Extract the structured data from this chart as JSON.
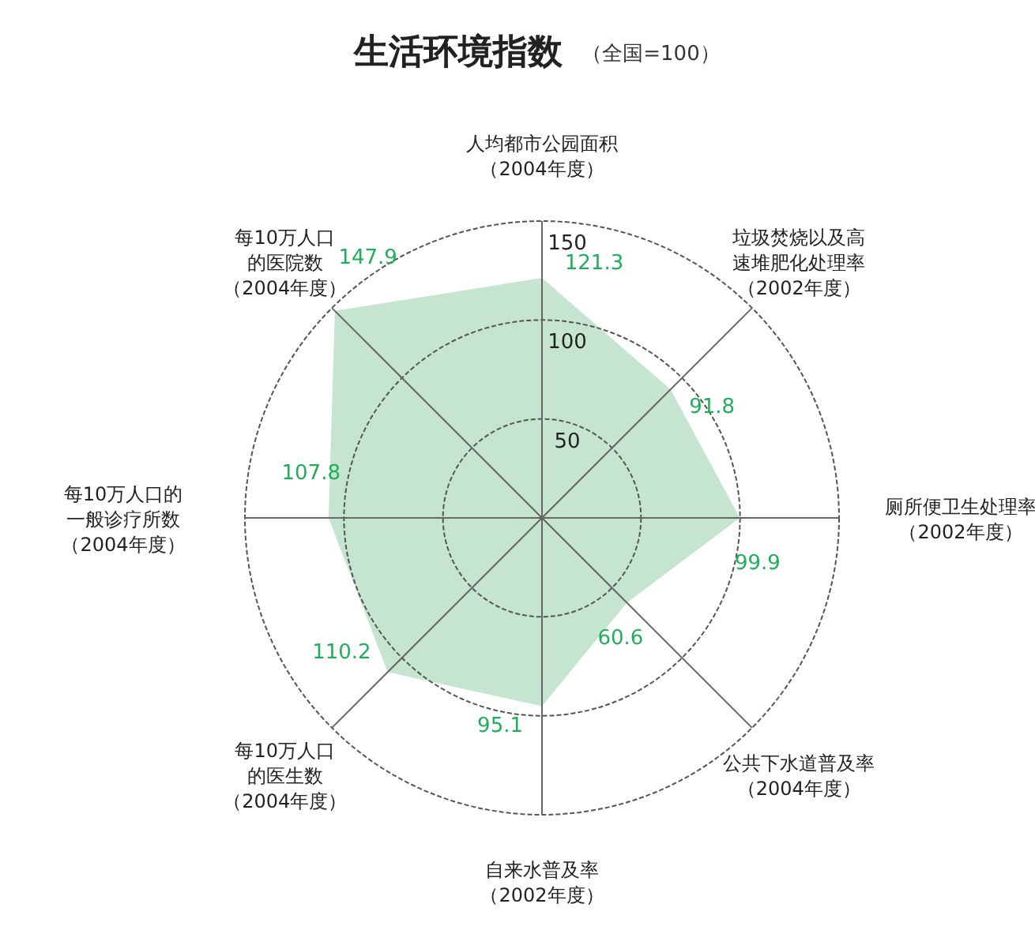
{
  "chart_data": {
    "type": "radar",
    "title": "生活环境指数",
    "subtitle": "（全国=100）",
    "categories": [
      "人均都市公园面积（2004年度）",
      "垃圾焚烧以及高速堆肥化处理率（2002年度）",
      "厕所便卫生处理率（2002年度）",
      "公共下水道普及率（2004年度）",
      "自来水普及率（2002年度）",
      "每10万人口的医生数（2004年度）",
      "每10万人口的一般诊疗所数（2004年度）",
      "每10万人口的医院数（2004年度）"
    ],
    "series": [
      {
        "color": "#c6e5d0",
        "values": [
          121.3,
          91.8,
          99.9,
          60.6,
          95.1,
          110.2,
          107.8,
          147.9
        ]
      }
    ],
    "ylim": [
      0,
      150
    ],
    "yticks": [
      50,
      100,
      150
    ],
    "data_labels": true,
    "grid": true
  }
}
